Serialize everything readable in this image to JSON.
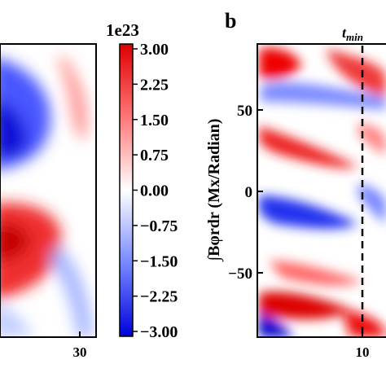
{
  "chart_data": [
    {
      "type": "heatmap",
      "panel": "left",
      "xticks": [
        "30"
      ],
      "colormap": "bwr"
    },
    {
      "type": "colorbar",
      "multiplier": "1e23",
      "ticks": [
        "3.00",
        "2.25",
        "1.50",
        "0.75",
        "0.00",
        "−0.75",
        "−1.50",
        "−2.25",
        "−3.00"
      ],
      "tick_values": [
        3.0,
        2.25,
        1.5,
        0.75,
        0.0,
        -0.75,
        -1.5,
        -2.25,
        -3.0
      ],
      "vmin": -3.0,
      "vmax": 3.0,
      "label": "∫Bφrdr (Mx/Radian)",
      "colors": {
        "max": "#dd0000",
        "mid": "#ffffff",
        "min": "#0000dd"
      }
    },
    {
      "type": "heatmap",
      "panel": "right",
      "panel_letter": "b",
      "yticks": [
        "50",
        "0",
        "−50"
      ],
      "ytick_values": [
        50,
        0,
        -50
      ],
      "xticks": [
        "10"
      ],
      "annotation": "t",
      "annotation_sub": "min",
      "colormap": "bwr"
    }
  ]
}
